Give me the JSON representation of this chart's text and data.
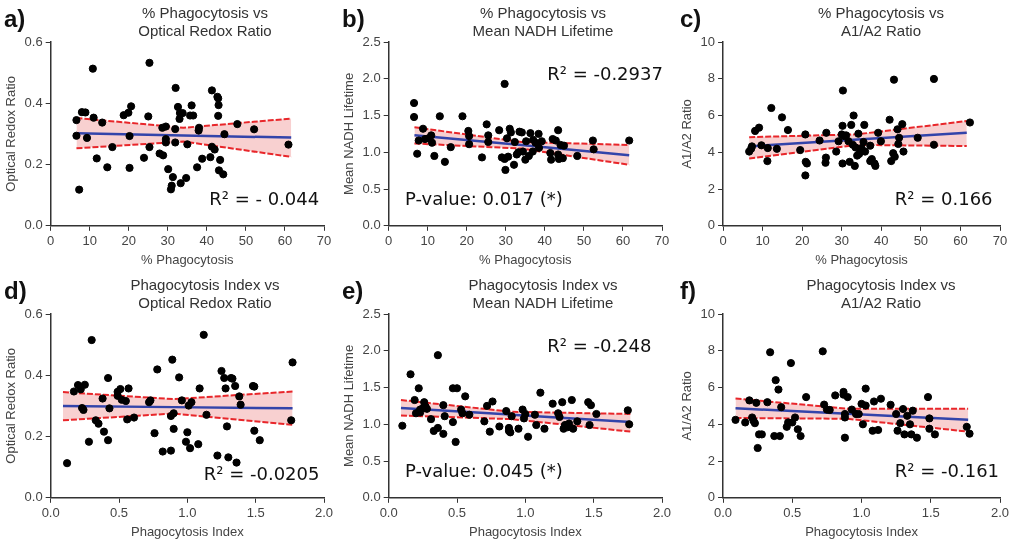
{
  "chart_data": [
    {
      "type": "scatter",
      "title": "% Phagocytosis vs Optical Redox Ratio",
      "xlabel": "% Phagocytosis",
      "ylabel": "Optical Redox Ratio",
      "annotations": [
        "a)",
        "R² = - 0.044"
      ],
      "xlim": [
        0,
        70
      ],
      "xticks": [
        0,
        10,
        20,
        30,
        40,
        50,
        60,
        70
      ],
      "ylim": [
        0,
        0.6
      ],
      "yticks": [
        {
          "value": 0,
          "label": "0.0"
        },
        0.2,
        0.4,
        0.6
      ],
      "grid": false,
      "legend": false,
      "marker": "circle",
      "series": [
        {
          "color": "#000000",
          "x": [
            6.6,
            6.6,
            7.3,
            8.0,
            8.9,
            9.3,
            10.8,
            11,
            11.8,
            13.2,
            14.5,
            15.8,
            18.7,
            19.9,
            20.6,
            20.2,
            20.2,
            23.9,
            25.3,
            25,
            25.3,
            27.9,
            28.8,
            28.6,
            29.5,
            29.5,
            29.5,
            30.1,
            31,
            30.8,
            31.3,
            32,
            31.9,
            31.9,
            32.6,
            33,
            33.1,
            33.8,
            33.3,
            34.7,
            35,
            36.1,
            35.7,
            36.5,
            37.5,
            37.9,
            38,
            38.8,
            40.9,
            41.3,
            41.3,
            42,
            42.7,
            42.9,
            43,
            42.9,
            43.4,
            43.1,
            44.2,
            44.5,
            47.8,
            52.1,
            60.9
          ],
          "values": [
            0.345,
            0.294,
            0.118,
            0.371,
            0.37,
            0.287,
            0.513,
            0.353,
            0.22,
            0.337,
            0.191,
            0.257,
            0.361,
            0.369,
            0.39,
            0.293,
            0.189,
            0.222,
            0.532,
            0.357,
            0.257,
            0.236,
            0.23,
            0.32,
            0.324,
            0.283,
            0.272,
            0.185,
            0.131,
            0.119,
            0.159,
            0.45,
            0.316,
            0.272,
            0.388,
            0.349,
            0.368,
            0.368,
            0.139,
            0.156,
            0.266,
            0.393,
            0.36,
            0.36,
            0.191,
            0.311,
            0.32,
            0.219,
            0.224,
            0.442,
            0.258,
            0.249,
            0.421,
            0.416,
            0.394,
            0.359,
            0.215,
            0.181,
            0.168,
            0.299,
            0.332,
            0.315,
            0.265
          ]
        },
        {
          "type": "line",
          "marker": "none",
          "color": "#3344aa",
          "x": [
            6.6,
            34,
            61.6
          ],
          "values": [
            0.302,
            0.295,
            0.288
          ],
          "lower": [
            0.253,
            0.275,
            0.225
          ],
          "upper": [
            0.352,
            0.32,
            0.35
          ]
        },
        {
          "type": "line",
          "marker": "none",
          "line_style": "dashed",
          "color": "#e8262a",
          "x": [
            6.6,
            34,
            61.6
          ],
          "values": [
            0.253,
            0.275,
            0.225
          ]
        },
        {
          "type": "line",
          "marker": "none",
          "line_style": "dashed",
          "color": "#e8262a",
          "x": [
            6.6,
            34,
            61.6
          ],
          "values": [
            0.352,
            0.32,
            0.35
          ]
        }
      ]
    },
    {
      "type": "scatter",
      "title": "% Phagocytosis vs Mean NADH Lifetime",
      "xlabel": "% Phagocytosis",
      "ylabel": "Mean NADH Lifetime",
      "annotations": [
        "b)",
        "R² = -0.2937",
        "P-value: 0.017 (*)"
      ],
      "xlim": [
        0,
        70
      ],
      "xticks": [
        0,
        10,
        20,
        30,
        40,
        50,
        60,
        70
      ],
      "ylim": [
        0,
        2.5
      ],
      "yticks": [
        {
          "value": 0,
          "label": "0.0"
        },
        0.5,
        {
          "value": 1,
          "label": "1.0"
        },
        1.5,
        {
          "value": 2,
          "label": "2.0"
        },
        2.5
      ],
      "grid": false,
      "legend": false,
      "marker": "circle",
      "series": [
        {
          "color": "#000000",
          "x": [
            6.5,
            6.5,
            7.3,
            7.7,
            8.8,
            9.3,
            10.2,
            10.9,
            11.1,
            11.7,
            13.1,
            14.4,
            15.9,
            18.9,
            20.4,
            20.6,
            20.6,
            23.9,
            25.1,
            25.5,
            25.5,
            28.3,
            29,
            29.7,
            29.7,
            29.9,
            30.3,
            30.6,
            31,
            31.3,
            32.1,
            32.3,
            32.8,
            33.2,
            33.5,
            34.1,
            34.4,
            35,
            35.2,
            35.9,
            36.3,
            36.9,
            37,
            37.6,
            38.4,
            38.5,
            39.2,
            41.4,
            41.6,
            42,
            42.8,
            43.4,
            43.4,
            43.6,
            44,
            44.6,
            44.9,
            48.3,
            52.3,
            52.5,
            61.6
          ],
          "values": [
            1.67,
            1.48,
            0.98,
            1.16,
            1.32,
            1.18,
            1.19,
            1.23,
            1.13,
            0.95,
            1.49,
            0.87,
            1.07,
            1.49,
            1.29,
            1.22,
            1.11,
            0.93,
            1.38,
            1.23,
            1.14,
            1.3,
            0.93,
            1.93,
            0.91,
            0.76,
            1.19,
            0.94,
            1.32,
            1.27,
            0.83,
            1.14,
            0.97,
            1.0,
            1.28,
            1.27,
            1.01,
            0.9,
            1.15,
            0.95,
            1.26,
            1.01,
            1.17,
            1.13,
            1.25,
            1.06,
            1.15,
            0.99,
            0.9,
            1.18,
            1.16,
            1.3,
            0.97,
            0.91,
            1.1,
            0.92,
            1.09,
            0.95,
            1.16,
            1.04,
            1.16
          ]
        },
        {
          "type": "line",
          "marker": "none",
          "color": "#3344aa",
          "x": [
            6.6,
            34,
            61.6
          ],
          "values": [
            1.23,
            1.1,
            0.96
          ],
          "lower": [
            1.12,
            1.05,
            0.83
          ],
          "upper": [
            1.34,
            1.14,
            1.1
          ]
        },
        {
          "type": "line",
          "marker": "none",
          "line_style": "dashed",
          "color": "#e8262a",
          "x": [
            6.6,
            34,
            61.6
          ],
          "values": [
            1.12,
            1.05,
            0.83
          ]
        },
        {
          "type": "line",
          "marker": "none",
          "line_style": "dashed",
          "color": "#e8262a",
          "x": [
            6.6,
            34,
            61.6
          ],
          "values": [
            1.34,
            1.14,
            1.1
          ]
        }
      ]
    },
    {
      "type": "scatter",
      "title": "% Phagocytosis vs A1/A2 Ratio",
      "xlabel": "% Phagocytosis",
      "ylabel": "A1/A2 Ratio",
      "annotations": [
        "c)",
        "R² = 0.166"
      ],
      "xlim": [
        0,
        70
      ],
      "xticks": [
        0,
        10,
        20,
        30,
        40,
        50,
        60,
        70
      ],
      "ylim": [
        0,
        10
      ],
      "yticks": [
        0,
        2,
        4,
        6,
        8,
        10
      ],
      "grid": false,
      "legend": false,
      "marker": "circle",
      "series": [
        {
          "color": "#000000",
          "x": [
            6.6,
            7.1,
            7.3,
            8.1,
            9.1,
            9.7,
            11.2,
            11.3,
            12.2,
            13.6,
            14.9,
            16.4,
            19.5,
            20.8,
            20.9,
            21.2,
            20.8,
            24.4,
            25.9,
            26,
            26.1,
            28.6,
            29.2,
            30,
            30.2,
            30.3,
            30.2,
            30.6,
            31.1,
            31.7,
            32,
            32.4,
            32.8,
            33,
            33.3,
            33.5,
            33.9,
            34.2,
            34.4,
            35,
            35.5,
            35.7,
            35.9,
            37.2,
            37.2,
            37.6,
            38.3,
            38.5,
            39.2,
            39.9,
            42.1,
            42.5,
            43,
            43.2,
            43.4,
            44.1,
            44.3,
            44.5,
            45.3,
            45.6,
            49.2,
            53.3,
            53.3,
            62.4
          ],
          "values": [
            4.04,
            4.19,
            4.32,
            5.16,
            5.34,
            4.38,
            3.52,
            4.23,
            6.41,
            4.19,
            5.9,
            5.21,
            4.12,
            2.74,
            3.48,
            3.39,
            4.97,
            4.64,
            3.43,
            3.71,
            5.06,
            4.04,
            4.6,
            4.97,
            5.44,
            7.36,
            3.39,
            4.88,
            4.92,
            4.6,
            3.48,
            5.49,
            4.41,
            6.0,
            3.26,
            4.26,
            3.82,
            5.01,
            3.91,
            4.23,
            4.56,
            5.49,
            4.04,
            4.36,
            3.52,
            3.63,
            3.39,
            3.26,
            5.06,
            4.6,
            5.77,
            3.52,
            3.95,
            7.95,
            3.76,
            5.25,
            4.45,
            4.79,
            5.53,
            4.04,
            4.79,
            7.99,
            4.41,
            5.62
          ]
        },
        {
          "type": "line",
          "marker": "none",
          "color": "#3344aa",
          "x": [
            6.6,
            34,
            61.6
          ],
          "values": [
            4.32,
            4.69,
            5.06
          ],
          "lower": [
            3.66,
            4.4,
            4.34
          ],
          "upper": [
            4.82,
            4.98,
            5.7
          ]
        },
        {
          "type": "line",
          "marker": "none",
          "line_style": "dashed",
          "color": "#e8262a",
          "x": [
            6.6,
            34,
            61.6
          ],
          "values": [
            3.66,
            4.4,
            4.34
          ]
        },
        {
          "type": "line",
          "marker": "none",
          "line_style": "dashed",
          "color": "#e8262a",
          "x": [
            6.6,
            34,
            61.6
          ],
          "values": [
            4.82,
            4.98,
            5.7
          ]
        }
      ]
    },
    {
      "type": "scatter",
      "title": "Phagocytosis Index vs Optical Redox Ratio",
      "xlabel": "Phagocytosis Index",
      "ylabel": "Optical Redox Ratio",
      "annotations": [
        "d)",
        "R² = -0.0205"
      ],
      "xlim": [
        0,
        2
      ],
      "xticks": [
        {
          "value": 0,
          "label": "0.0"
        },
        0.5,
        {
          "value": 1,
          "label": "1.0"
        },
        1.5,
        {
          "value": 2,
          "label": "2.0"
        }
      ],
      "ylim": [
        0,
        0.6
      ],
      "yticks": [
        {
          "value": 0,
          "label": "0.0"
        },
        0.2,
        0.4,
        0.6
      ],
      "grid": false,
      "legend": false,
      "marker": "circle",
      "series": [
        {
          "color": "#000000",
          "x": [
            0.12,
            0.17,
            0.2,
            0.22,
            0.23,
            0.24,
            0.25,
            0.3,
            0.28,
            0.33,
            0.35,
            0.38,
            0.39,
            0.42,
            0.42,
            0.43,
            0.49,
            0.49,
            0.51,
            0.52,
            0.55,
            0.56,
            0.57,
            0.61,
            0.72,
            0.73,
            0.76,
            0.78,
            0.82,
            0.88,
            0.88,
            0.89,
            0.9,
            0.9,
            0.94,
            0.96,
            0.99,
            1.0,
            1.01,
            1.03,
            1.02,
            1.08,
            1.09,
            1.12,
            1.14,
            1.22,
            1.25,
            1.27,
            1.28,
            1.29,
            1.3,
            1.32,
            1.33,
            1.35,
            1.36,
            1.38,
            1.39,
            1.48,
            1.49,
            1.49,
            1.53,
            1.77,
            1.76
          ],
          "values": [
            0.113,
            0.347,
            0.368,
            0.354,
            0.293,
            0.287,
            0.369,
            0.515,
            0.183,
            0.253,
            0.242,
            0.324,
            0.216,
            0.188,
            0.391,
            0.292,
            0.346,
            0.333,
            0.355,
            0.32,
            0.316,
            0.256,
            0.357,
            0.262,
            0.312,
            0.318,
            0.211,
            0.419,
            0.151,
            0.154,
            0.267,
            0.451,
            0.225,
            0.276,
            0.393,
            0.318,
            0.183,
            0.214,
            0.301,
            0.312,
            0.162,
            0.175,
            0.357,
            0.532,
            0.271,
            0.138,
            0.414,
            0.391,
            0.357,
            0.233,
            0.132,
            0.391,
            0.389,
            0.365,
            0.115,
            0.331,
            0.304,
            0.365,
            0.363,
            0.219,
            0.188,
            0.442,
            0.253
          ]
        },
        {
          "type": "line",
          "marker": "none",
          "color": "#3344aa",
          "x": [
            0.09,
            0.9,
            1.77
          ],
          "values": [
            0.3,
            0.296,
            0.292
          ],
          "lower": [
            0.253,
            0.275,
            0.238
          ],
          "upper": [
            0.345,
            0.322,
            0.347
          ]
        },
        {
          "type": "line",
          "marker": "none",
          "line_style": "dashed",
          "color": "#e8262a",
          "x": [
            0.09,
            0.9,
            1.77
          ],
          "values": [
            0.253,
            0.275,
            0.238
          ]
        },
        {
          "type": "line",
          "marker": "none",
          "line_style": "dashed",
          "color": "#e8262a",
          "x": [
            0.09,
            0.9,
            1.77
          ],
          "values": [
            0.345,
            0.322,
            0.347
          ]
        }
      ]
    },
    {
      "type": "scatter",
      "title": "Phagocytosis Index vs Mean NADH Lifetime",
      "xlabel": "Phagocytosis Index",
      "ylabel": "Mean NADH Lifetime",
      "annotations": [
        "e)",
        "R² = -0.248",
        "P-value: 0.045 (*)"
      ],
      "xlim": [
        0,
        2
      ],
      "xticks": [
        {
          "value": 0,
          "label": "0.0"
        },
        0.5,
        {
          "value": 1,
          "label": "1.0"
        },
        1.5,
        {
          "value": 2,
          "label": "2.0"
        }
      ],
      "ylim": [
        0,
        2.5
      ],
      "yticks": [
        {
          "value": 0,
          "label": "0.0"
        },
        0.5,
        {
          "value": 1,
          "label": "1.0"
        },
        1.5,
        {
          "value": 2,
          "label": "2.0"
        },
        2.5
      ],
      "grid": false,
      "legend": false,
      "marker": "circle",
      "series": [
        {
          "color": "#000000",
          "x": [
            0.1,
            0.16,
            0.19,
            0.2,
            0.22,
            0.23,
            0.23,
            0.25,
            0.26,
            0.27,
            0.28,
            0.31,
            0.33,
            0.36,
            0.36,
            0.4,
            0.4,
            0.41,
            0.47,
            0.47,
            0.5,
            0.49,
            0.53,
            0.54,
            0.56,
            0.59,
            0.7,
            0.72,
            0.74,
            0.76,
            0.81,
            0.86,
            0.88,
            0.88,
            0.89,
            0.9,
            0.95,
            0.98,
            1.0,
            0.99,
            1.02,
            1.07,
            1.08,
            1.11,
            1.14,
            1.2,
            1.24,
            1.25,
            1.27,
            1.28,
            1.29,
            1.31,
            1.32,
            1.34,
            1.35,
            1.38,
            1.46,
            1.48,
            1.47,
            1.52,
            1.75,
            1.76
          ],
          "values": [
            0.98,
            1.68,
            1.33,
            1.15,
            1.49,
            1.2,
            1.16,
            1.22,
            1.3,
            1.24,
            1.21,
            1.07,
            0.91,
            1.94,
            0.95,
            0.87,
            1.26,
            1.11,
            1.03,
            1.49,
            1.49,
            0.76,
            1.2,
            1.15,
            1.38,
            1.13,
            1.04,
            1.25,
            0.9,
            1.31,
            0.97,
            1.18,
            0.91,
            0.95,
            0.89,
            1.11,
            0.94,
            1.2,
            1.14,
            1.08,
            0.83,
            1.13,
            0.99,
            1.43,
            0.94,
            1.28,
            1.15,
            1.1,
            1.3,
            0.94,
            0.99,
            0.96,
            1.01,
            1.33,
            0.94,
            1.04,
            1.3,
            1.26,
            0.99,
            1.14,
            1.19,
            1.0
          ]
        },
        {
          "type": "line",
          "marker": "none",
          "color": "#3344aa",
          "x": [
            0.09,
            0.9,
            1.77
          ],
          "values": [
            1.22,
            1.13,
            1.03
          ],
          "lower": [
            1.12,
            1.07,
            0.9
          ],
          "upper": [
            1.33,
            1.17,
            1.14
          ]
        },
        {
          "type": "line",
          "marker": "none",
          "line_style": "dashed",
          "color": "#e8262a",
          "x": [
            0.09,
            0.9,
            1.77
          ],
          "values": [
            1.12,
            1.07,
            0.9
          ]
        },
        {
          "type": "line",
          "marker": "none",
          "line_style": "dashed",
          "color": "#e8262a",
          "x": [
            0.09,
            0.9,
            1.77
          ],
          "values": [
            1.33,
            1.17,
            1.14
          ]
        }
      ]
    },
    {
      "type": "scatter",
      "title": "Phagocytosis Index vs A1/A2 Ratio",
      "xlabel": "Phagocytosis Index",
      "ylabel": "A1/A2 Ratio",
      "annotations": [
        "f)",
        "R² = -0.161"
      ],
      "xlim": [
        0,
        2
      ],
      "xticks": [
        {
          "value": 0,
          "label": "0.0"
        },
        0.5,
        {
          "value": 1,
          "label": "1.0"
        },
        1.5,
        {
          "value": 2,
          "label": "2.0"
        }
      ],
      "ylim": [
        0,
        10
      ],
      "yticks": [
        0,
        2,
        4,
        6,
        8,
        10
      ],
      "grid": false,
      "legend": false,
      "marker": "circle",
      "series": [
        {
          "color": "#000000",
          "x": [
            0.09,
            0.16,
            0.19,
            0.21,
            0.22,
            0.23,
            0.24,
            0.25,
            0.26,
            0.28,
            0.32,
            0.34,
            0.37,
            0.38,
            0.4,
            0.41,
            0.42,
            0.46,
            0.47,
            0.49,
            0.5,
            0.52,
            0.54,
            0.56,
            0.6,
            0.72,
            0.73,
            0.75,
            0.77,
            0.81,
            0.87,
            0.87,
            0.88,
            0.88,
            0.88,
            0.9,
            0.93,
            0.96,
            0.98,
            1.0,
            1.01,
            1.03,
            1.03,
            1.08,
            1.09,
            1.12,
            1.14,
            1.21,
            1.25,
            1.26,
            1.28,
            1.3,
            1.31,
            1.33,
            1.35,
            1.36,
            1.37,
            1.4,
            1.48,
            1.49,
            1.49,
            1.53,
            1.76,
            1.78
          ],
          "values": [
            4.24,
            4.1,
            5.3,
            4.37,
            4.19,
            4.06,
            5.17,
            2.71,
            3.45,
            3.45,
            5.2,
            7.92,
            3.36,
            6.4,
            5.89,
            3.36,
            4.93,
            3.86,
            4.1,
            7.33,
            4.1,
            4.37,
            3.73,
            3.36,
            5.48,
            7.97,
            5.07,
            4.8,
            4.78,
            5.57,
            5.76,
            5.61,
            4.56,
            4.37,
            3.27,
            5.48,
            4.8,
            4.56,
            4.56,
            5.11,
            4.0,
            5.94,
            5.02,
            3.65,
            5.24,
            3.69,
            5.39,
            5.06,
            4.56,
            3.65,
            4.06,
            4.83,
            3.45,
            4.46,
            4.0,
            3.45,
            4.74,
            3.27,
            5.48,
            4.32,
            3.76,
            3.45,
            3.86,
            3.49
          ]
        },
        {
          "type": "line",
          "marker": "none",
          "color": "#3344aa",
          "x": [
            0.09,
            0.9,
            1.77
          ],
          "values": [
            4.87,
            4.57,
            4.24
          ],
          "lower": [
            4.34,
            4.3,
            3.6
          ],
          "upper": [
            5.4,
            4.85,
            4.84
          ]
        },
        {
          "type": "line",
          "marker": "none",
          "line_style": "dashed",
          "color": "#e8262a",
          "x": [
            0.09,
            0.9,
            1.77
          ],
          "values": [
            4.34,
            4.3,
            3.6
          ]
        },
        {
          "type": "line",
          "marker": "none",
          "line_style": "dashed",
          "color": "#e8262a",
          "x": [
            0.09,
            0.9,
            1.77
          ],
          "values": [
            5.4,
            4.85,
            4.84
          ]
        }
      ]
    }
  ]
}
